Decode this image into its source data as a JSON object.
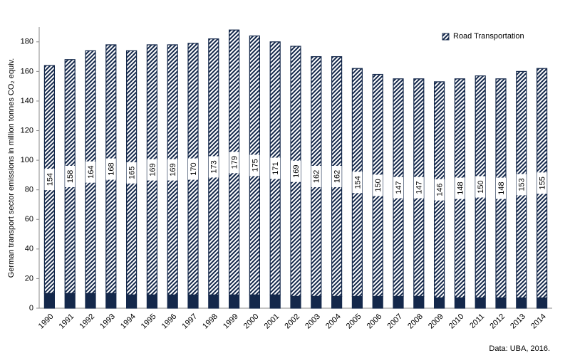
{
  "chart_data": {
    "type": "stacked_bar",
    "y_label": "German transport sector emissions in million tonnes CO₂ equiv.",
    "source": "Data: UBA, 2016.",
    "categories": [
      "1990",
      "1991",
      "1992",
      "1993",
      "1994",
      "1995",
      "1996",
      "1997",
      "1998",
      "1999",
      "2000",
      "2001",
      "2002",
      "2003",
      "2004",
      "2005",
      "2006",
      "2007",
      "2008",
      "2009",
      "2010",
      "2011",
      "2012",
      "2013",
      "2014"
    ],
    "series": [
      {
        "color": "#14284b",
        "values": [
          10,
          10,
          10,
          10,
          9,
          9,
          9,
          9,
          9,
          9,
          9,
          9,
          8,
          8,
          8,
          8,
          8,
          8,
          8,
          7,
          7,
          7,
          7,
          7,
          7
        ]
      },
      {
        "name": "Road Transportation",
        "color": "#14284b",
        "hatched": true,
        "values": [
          154,
          158,
          164,
          168,
          165,
          169,
          169,
          170,
          173,
          179,
          175,
          171,
          169,
          162,
          162,
          154,
          150,
          147,
          147,
          146,
          148,
          150,
          148,
          153,
          155
        ]
      }
    ],
    "ylim": [
      0,
      190
    ],
    "yticks": [
      0,
      20,
      40,
      60,
      80,
      100,
      120,
      140,
      160,
      180
    ],
    "legend": "top-right"
  }
}
